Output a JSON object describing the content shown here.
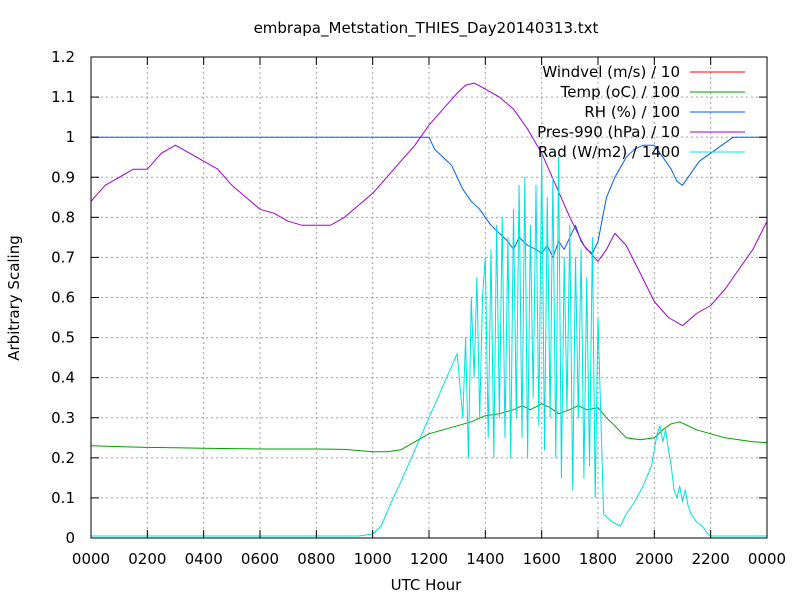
{
  "chart_data": {
    "type": "line",
    "title": "embrapa_Metstation_THIES_Day20140313.txt",
    "xlabel": "UTC Hour",
    "ylabel": "Arbitrary Scaling",
    "xlim": [
      0,
      24
    ],
    "ylim": [
      0,
      1.2
    ],
    "x_ticks": [
      0,
      2,
      4,
      6,
      8,
      10,
      12,
      14,
      16,
      18,
      20,
      22,
      24
    ],
    "x_tick_labels": [
      "0000",
      "0200",
      "0400",
      "0600",
      "0800",
      "1000",
      "1200",
      "1400",
      "1600",
      "1800",
      "2000",
      "2200",
      "0000"
    ],
    "y_ticks": [
      0,
      0.1,
      0.2,
      0.3,
      0.4,
      0.5,
      0.6,
      0.7,
      0.8,
      0.9,
      1,
      1.1,
      1.2
    ],
    "y_tick_labels": [
      "0",
      "0.1",
      "0.2",
      "0.3",
      "0.4",
      "0.5",
      "0.6",
      "0.7",
      "0.8",
      "0.9",
      "1",
      "1.1",
      "1.2"
    ],
    "grid": true,
    "legend_position": "top-right",
    "series": [
      {
        "name": "Windvel (m/s) / 10",
        "color": "#ff0000",
        "x": [],
        "values": []
      },
      {
        "name": "Temp (oC) / 100",
        "color": "#00a000",
        "x": [
          0,
          1,
          2,
          3,
          4,
          5,
          6,
          7,
          8,
          9,
          10,
          10.5,
          11,
          11.5,
          12,
          12.5,
          13,
          13.5,
          14,
          14.5,
          15,
          15.3,
          15.6,
          16,
          16.3,
          16.6,
          17,
          17.3,
          17.6,
          18,
          18.3,
          18.6,
          19,
          19.5,
          20,
          20.3,
          20.6,
          20.9,
          21.2,
          21.5,
          22,
          22.5,
          23,
          23.5,
          24
        ],
        "values": [
          0.23,
          0.228,
          0.226,
          0.225,
          0.224,
          0.223,
          0.222,
          0.222,
          0.222,
          0.221,
          0.215,
          0.215,
          0.22,
          0.24,
          0.26,
          0.27,
          0.28,
          0.29,
          0.305,
          0.31,
          0.32,
          0.33,
          0.32,
          0.335,
          0.325,
          0.31,
          0.32,
          0.33,
          0.32,
          0.325,
          0.3,
          0.28,
          0.25,
          0.245,
          0.25,
          0.27,
          0.285,
          0.29,
          0.28,
          0.27,
          0.26,
          0.25,
          0.245,
          0.24,
          0.238
        ]
      },
      {
        "name": "RH (%) / 100",
        "color": "#0060e0",
        "x": [
          0,
          2,
          4,
          6,
          8,
          10,
          11,
          12,
          12.2,
          12.5,
          12.8,
          13,
          13.2,
          13.5,
          13.8,
          14,
          14.2,
          14.5,
          14.8,
          15,
          15.2,
          15.5,
          15.8,
          16,
          16.2,
          16.4,
          16.6,
          16.8,
          17,
          17.2,
          17.4,
          17.6,
          17.8,
          18,
          18.3,
          18.6,
          19,
          19.3,
          19.6,
          20,
          20.3,
          20.6,
          20.8,
          21,
          21.3,
          21.6,
          22,
          22.4,
          22.8,
          23.2,
          24
        ],
        "values": [
          1,
          1,
          1,
          1,
          1,
          1,
          1,
          1,
          0.97,
          0.95,
          0.93,
          0.9,
          0.87,
          0.84,
          0.82,
          0.8,
          0.78,
          0.76,
          0.74,
          0.72,
          0.75,
          0.73,
          0.72,
          0.71,
          0.73,
          0.7,
          0.74,
          0.72,
          0.75,
          0.78,
          0.74,
          0.72,
          0.71,
          0.74,
          0.85,
          0.9,
          0.95,
          0.97,
          0.98,
          0.98,
          0.95,
          0.92,
          0.89,
          0.88,
          0.91,
          0.94,
          0.96,
          0.98,
          1,
          1,
          1
        ]
      },
      {
        "name": "Pres-990 (hPa) / 10",
        "color": "#a000d0",
        "x": [
          0,
          0.5,
          1,
          1.5,
          2,
          2.5,
          3,
          3.5,
          4,
          4.5,
          5,
          5.5,
          6,
          6.5,
          7,
          7.5,
          8,
          8.5,
          9,
          9.5,
          10,
          10.5,
          11,
          11.5,
          12,
          12.5,
          13,
          13.3,
          13.6,
          14,
          14.5,
          15,
          15.5,
          16,
          16.5,
          17,
          17.5,
          18,
          18.3,
          18.6,
          19,
          19.5,
          20,
          20.5,
          21,
          21.5,
          22,
          22.5,
          23,
          23.5,
          24
        ],
        "values": [
          0.84,
          0.88,
          0.9,
          0.92,
          0.92,
          0.96,
          0.98,
          0.96,
          0.94,
          0.92,
          0.88,
          0.85,
          0.82,
          0.81,
          0.79,
          0.78,
          0.78,
          0.78,
          0.8,
          0.83,
          0.86,
          0.9,
          0.94,
          0.98,
          1.03,
          1.07,
          1.11,
          1.13,
          1.135,
          1.12,
          1.1,
          1.07,
          1.02,
          0.96,
          0.88,
          0.8,
          0.73,
          0.69,
          0.72,
          0.76,
          0.73,
          0.66,
          0.59,
          0.55,
          0.53,
          0.56,
          0.58,
          0.62,
          0.67,
          0.72,
          0.79
        ]
      },
      {
        "name": "Rad (W/m2) / 1400",
        "color": "#00e0e0",
        "x": [
          0,
          2,
          4,
          6,
          8,
          9.5,
          10,
          10.3,
          10.6,
          11,
          11.5,
          12,
          12.5,
          13,
          13.2,
          13.3,
          13.4,
          13.5,
          13.6,
          13.7,
          13.8,
          13.9,
          14,
          14.1,
          14.2,
          14.3,
          14.4,
          14.5,
          14.6,
          14.7,
          14.8,
          14.9,
          15,
          15.1,
          15.2,
          15.3,
          15.4,
          15.5,
          15.6,
          15.7,
          15.8,
          15.9,
          16,
          16.1,
          16.2,
          16.3,
          16.4,
          16.5,
          16.6,
          16.7,
          16.8,
          16.9,
          17,
          17.1,
          17.2,
          17.3,
          17.4,
          17.5,
          17.6,
          17.7,
          17.8,
          17.9,
          18,
          18.2,
          18.5,
          18.8,
          19,
          19.3,
          19.6,
          19.9,
          20,
          20.1,
          20.2,
          20.3,
          20.4,
          20.5,
          20.6,
          20.7,
          20.8,
          20.9,
          21,
          21.1,
          21.2,
          21.3,
          21.5,
          21.7,
          21.9,
          22,
          22.5,
          23,
          24
        ],
        "values": [
          0.005,
          0.005,
          0.005,
          0.005,
          0.005,
          0.005,
          0.01,
          0.03,
          0.08,
          0.14,
          0.22,
          0.3,
          0.38,
          0.46,
          0.3,
          0.5,
          0.2,
          0.6,
          0.4,
          0.65,
          0.3,
          0.6,
          0.7,
          0.25,
          0.72,
          0.2,
          0.78,
          0.3,
          0.8,
          0.25,
          0.75,
          0.2,
          0.82,
          0.3,
          0.88,
          0.25,
          0.9,
          0.2,
          0.78,
          0.35,
          0.88,
          0.28,
          0.96,
          0.22,
          0.85,
          0.3,
          0.9,
          0.2,
          0.95,
          0.15,
          0.7,
          0.32,
          0.78,
          0.12,
          0.7,
          0.3,
          0.72,
          0.15,
          0.65,
          0.18,
          0.75,
          0.1,
          0.55,
          0.06,
          0.04,
          0.03,
          0.06,
          0.09,
          0.13,
          0.18,
          0.22,
          0.26,
          0.28,
          0.24,
          0.27,
          0.22,
          0.18,
          0.12,
          0.1,
          0.13,
          0.09,
          0.12,
          0.08,
          0.06,
          0.04,
          0.03,
          0.01,
          0.005,
          0.005,
          0.005,
          0.005
        ]
      }
    ]
  }
}
